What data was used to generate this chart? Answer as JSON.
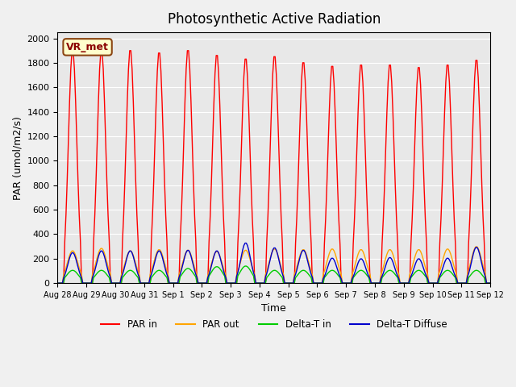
{
  "title": "Photosynthetic Active Radiation",
  "ylabel": "PAR (umol/m2/s)",
  "xlabel": "Time",
  "ylim": [
    0,
    2050
  ],
  "xlim": [
    0,
    336
  ],
  "bg_color": "#e8e8e8",
  "label_text": "VR_met",
  "legend_entries": [
    "PAR in",
    "PAR out",
    "Delta-T in",
    "Delta-T Diffuse"
  ],
  "legend_colors": [
    "#ff0000",
    "#ffa500",
    "#00cc00",
    "#0000cc"
  ],
  "x_tick_labels": [
    "Aug 28",
    "Aug 29",
    "Aug 30",
    "Aug 31",
    "Sep 1",
    "Sep 2",
    "Sep 3",
    "Sep 4",
    "Sep 5",
    "Sep 6",
    "Sep 7",
    "Sep 8",
    "Sep 9",
    "Sep 10",
    "Sep 11",
    "Sep 12"
  ],
  "x_tick_positions": [
    0,
    24,
    48,
    72,
    96,
    120,
    144,
    168,
    192,
    216,
    240,
    264,
    288,
    312,
    336,
    360
  ],
  "par_in_peaks": [
    1920,
    1920,
    1920,
    1900,
    1920,
    1880,
    1850,
    1870,
    1820,
    1790,
    1800,
    1800,
    1780,
    1800,
    1840
  ],
  "par_out_peaks": [
    265,
    285,
    265,
    275,
    270,
    260,
    270,
    280,
    275,
    280,
    275,
    275,
    275,
    280,
    300
  ],
  "delta_t_in_peaks": [
    105,
    105,
    105,
    105,
    120,
    135,
    140,
    105,
    105,
    105,
    105,
    105,
    105,
    105,
    105
  ],
  "delta_t_diff_peaks": [
    250,
    265,
    265,
    265,
    270,
    265,
    330,
    290,
    270,
    205,
    200,
    210,
    200,
    205,
    295
  ],
  "num_days": 15
}
